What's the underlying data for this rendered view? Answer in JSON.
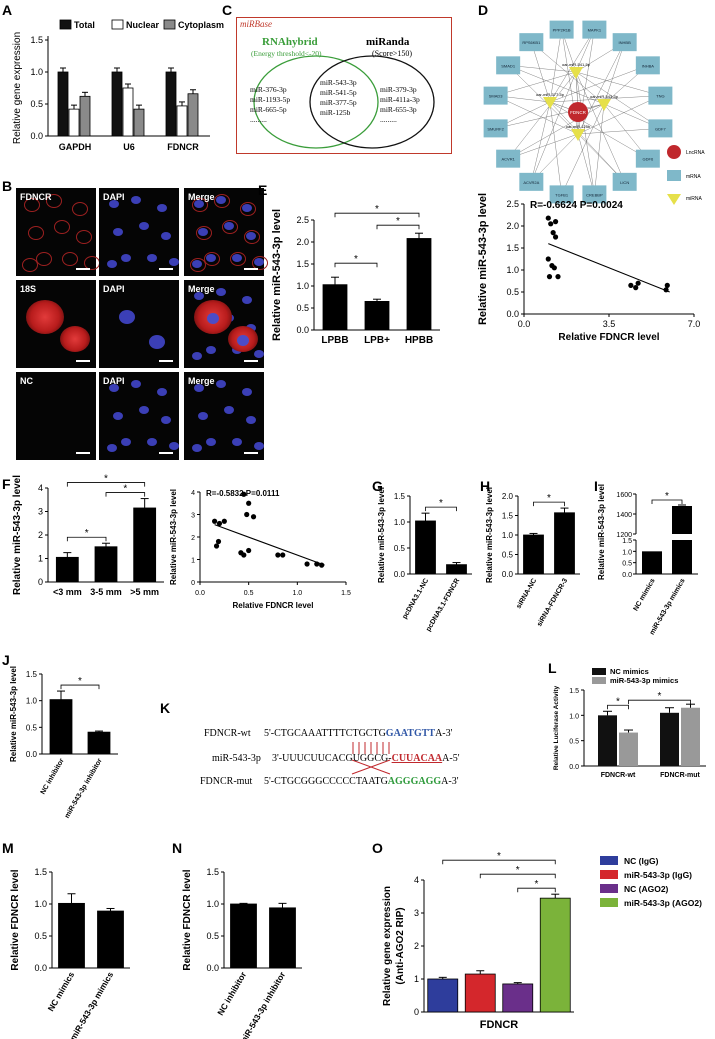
{
  "panels": {
    "A": {
      "letter": "A",
      "legend": [
        "Total",
        "Nuclear",
        "Cytoplasm"
      ],
      "colors": {
        "total": "#111111",
        "nuclear": "#ffffff",
        "cytoplasm": "#8a8a8a"
      },
      "ylabel": "Relative gene expression",
      "yticks": [
        "0.0",
        "0.5",
        "1.0",
        "1.5"
      ],
      "chart_data": {
        "type": "bar",
        "categories": [
          "GAPDH",
          "U6",
          "FDNCR"
        ],
        "series": [
          {
            "name": "Total",
            "values": [
              1.0,
              1.0,
              1.0
            ]
          },
          {
            "name": "Nuclear",
            "values": [
              0.42,
              0.75,
              0.47
            ]
          },
          {
            "name": "Cytoplasm",
            "values": [
              0.62,
              0.42,
              0.66
            ]
          }
        ],
        "ylim": [
          0,
          1.5
        ]
      }
    },
    "B": {
      "letter": "B",
      "rows": [
        {
          "labels": [
            "FDNCR",
            "DAPI",
            "Merge"
          ]
        },
        {
          "labels": [
            "18S",
            "DAPI",
            "Merge"
          ]
        },
        {
          "labels": [
            "NC",
            "DAPI",
            "Merge"
          ]
        }
      ]
    },
    "C": {
      "letter": "C",
      "box_title": "miRBase",
      "left_title": "RNAhybrid",
      "left_sub": "(Energy threshold<-20)",
      "right_title": "miRanda",
      "right_sub": "(Score>150)",
      "left_only": [
        "miR-376-3p",
        "miR-1193-5p",
        "miR-665-5p",
        "........."
      ],
      "shared": [
        "miR-543-3p",
        "miR-541-5p",
        "miR-377-5p",
        "miR-125b"
      ],
      "right_only": [
        "miR-379-3p",
        "miR-411a-3p",
        "miR-655-3p",
        "........."
      ]
    },
    "D": {
      "letter": "D",
      "center": "FDNCR",
      "mirnas": [
        "oar-miR-541-5p",
        "oar-miR-377-5p",
        "oar-miR-543-3p",
        "oar-miR-125b"
      ],
      "mrnas": [
        "MAPK1",
        "INHBB",
        "INHBA",
        "TNG",
        "GDF7",
        "GDF6",
        "LICN",
        "CREBBP",
        "TGFB1",
        "ACVR2A",
        "ACVR1",
        "SMURF2",
        "SMAD3",
        "SMAD1",
        "RPS6KB1",
        "PPP2R1B"
      ],
      "legend": [
        "LncRNA",
        "mRNA",
        "miRNA"
      ],
      "colors": {
        "lncrna": "#c0282d",
        "mrna": "#7fb8c9",
        "mirna": "#e6e04a"
      }
    },
    "E": {
      "letter": "E",
      "ylabel": "Relative miR-543-3p level",
      "bar_chart": {
        "type": "bar",
        "categories": [
          "LPBB",
          "LPB+",
          "HPBB"
        ],
        "values": [
          1.03,
          0.65,
          2.08
        ],
        "errors": [
          0.17,
          0.05,
          0.12
        ],
        "ylim": [
          0,
          2.5
        ],
        "yticks": [
          "0.0",
          "0.5",
          "1.0",
          "1.5",
          "2.0",
          "2.5"
        ],
        "sig": [
          "*",
          "*",
          "*"
        ]
      },
      "scatter": {
        "type": "scatter",
        "stat": "R=-0.6624    P=0.0024",
        "xlabel": "Relative FDNCR level",
        "xticks": [
          "0.0",
          "3.5",
          "7.0"
        ],
        "yticks": [
          "0.0",
          "0.5",
          "1.0",
          "1.5",
          "2.0",
          "2.5"
        ],
        "xlim": [
          0,
          7
        ],
        "ylim": [
          0,
          2.5
        ],
        "x": [
          1.0,
          1.1,
          1.2,
          1.3,
          1.0,
          1.15,
          1.4,
          1.05,
          1.25,
          1.3,
          4.4,
          4.7,
          4.6,
          5.9,
          5.85
        ],
        "y": [
          2.18,
          2.05,
          1.85,
          1.75,
          1.25,
          1.1,
          0.85,
          0.85,
          1.05,
          2.1,
          0.65,
          0.7,
          0.6,
          0.65,
          0.55
        ],
        "fit": {
          "x": [
            1.0,
            6.0
          ],
          "y": [
            1.6,
            0.5
          ]
        }
      }
    },
    "F": {
      "letter": "F",
      "ylabel": "Relative miR-543-3p level",
      "bar_chart": {
        "type": "bar",
        "categories": [
          "<3 mm",
          "3-5 mm",
          ">5 mm"
        ],
        "values": [
          1.05,
          1.5,
          3.15
        ],
        "errors": [
          0.2,
          0.15,
          0.4
        ],
        "ylim": [
          0,
          4
        ],
        "yticks": [
          "0",
          "1",
          "2",
          "3",
          "4"
        ],
        "sig": [
          "*",
          "*",
          "*"
        ]
      },
      "scatter": {
        "type": "scatter",
        "stat": "R=-0.5832    P=0.0111",
        "xlabel": "Relative FDNCR level",
        "ylabel": "Relative miR-543-3p level",
        "xticks": [
          "0.0",
          "0.5",
          "1.0",
          "1.5"
        ],
        "yticks": [
          "0",
          "1",
          "2",
          "3",
          "4"
        ],
        "xlim": [
          0,
          1.5
        ],
        "ylim": [
          0,
          4
        ],
        "x": [
          0.15,
          0.2,
          0.25,
          0.17,
          0.19,
          0.45,
          0.5,
          0.48,
          0.55,
          0.42,
          0.45,
          0.5,
          0.8,
          0.85,
          1.1,
          1.2,
          1.25
        ],
        "y": [
          2.7,
          2.6,
          2.7,
          1.6,
          1.8,
          3.9,
          3.5,
          3.0,
          2.9,
          1.3,
          1.2,
          1.4,
          1.2,
          1.2,
          0.8,
          0.8,
          0.75
        ],
        "fit": {
          "x": [
            0.15,
            1.28
          ],
          "y": [
            2.55,
            0.75
          ]
        }
      }
    },
    "G": {
      "letter": "G",
      "ylabel": "Relative miR-543-3p level",
      "chart_data": {
        "type": "bar",
        "categories": [
          "pcDNA3.1-NC",
          "pcDNA3.1-FDNCR"
        ],
        "values": [
          1.02,
          0.18
        ],
        "errors": [
          0.15,
          0.04
        ],
        "ylim": [
          0,
          1.5
        ]
      },
      "yticks": [
        "0.0",
        "0.5",
        "1.0",
        "1.5"
      ],
      "sig": "*"
    },
    "H": {
      "letter": "H",
      "ylabel": "Relative miR-543-3p level",
      "chart_data": {
        "type": "bar",
        "categories": [
          "siRNA-NC",
          "siRNA-FDNCR-3"
        ],
        "values": [
          1.0,
          1.57
        ],
        "errors": [
          0.04,
          0.12
        ],
        "ylim": [
          0,
          2.0
        ]
      },
      "yticks": [
        "0.0",
        "0.5",
        "1.0",
        "1.5",
        "2.0"
      ],
      "sig": "*"
    },
    "I": {
      "letter": "I",
      "ylabel": "Relative miR-543-3p level",
      "chart_data": {
        "type": "bar",
        "categories": [
          "NC mimics",
          "miR-543-3p mimics"
        ],
        "values": [
          1.0,
          1480
        ],
        "errors": [
          0.02,
          10
        ],
        "ylim": [
          0,
          1600
        ]
      },
      "yticks_low": [
        "0.0",
        "0.5",
        "1.0",
        "1.5"
      ],
      "yticks_high": [
        "1200",
        "1400",
        "1600"
      ],
      "sig": "*"
    },
    "J": {
      "letter": "J",
      "ylabel": "Relative miR-543-3p level",
      "chart_data": {
        "type": "bar",
        "categories": [
          "NC inhibitor",
          "miR-543-3p inhibitor"
        ],
        "values": [
          1.02,
          0.41
        ],
        "errors": [
          0.16,
          0.02
        ],
        "ylim": [
          0,
          1.5
        ]
      },
      "yticks": [
        "0.0",
        "0.5",
        "1.0",
        "1.5"
      ],
      "sig": "*"
    },
    "K": {
      "letter": "K",
      "wt_label": "FDNCR-wt",
      "wt_left": "5'-CTGCAAATTTTCTGCTG",
      "wt_site": "GAATGTT",
      "wt_right": "A-3'",
      "mir_label": "miR-543-3p",
      "mir_left": "3'-UUUCUUCACGUGGCG-",
      "mir_site": "CUUACAA",
      "mir_right": "A-5'",
      "mut_label": "FDNCR-mut",
      "mut_left": "5'-CTGCGGGCCCCCTAATG",
      "mut_site": "AGGGAGG",
      "mut_right": "A-3'",
      "colors": {
        "wt": "#2f56a6",
        "mir": "#c0282d",
        "mut": "#2e9a3b"
      }
    },
    "L": {
      "letter": "L",
      "ylabel": "Relative Luciferase Activity",
      "legend": [
        "NC mimics",
        "miR-543-3p mimics"
      ],
      "colors": {
        "nc": "#111111",
        "mimic": "#999999"
      },
      "chart_data": {
        "type": "bar",
        "categories": [
          "FDNCR-wt",
          "FDNCR-mut"
        ],
        "series": [
          {
            "name": "NC mimics",
            "values": [
              1.0,
              1.05
            ],
            "errors": [
              0.08,
              0.1
            ]
          },
          {
            "name": "miR-543-3p mimics",
            "values": [
              0.66,
              1.15
            ],
            "errors": [
              0.05,
              0.07
            ]
          }
        ],
        "ylim": [
          0,
          1.5
        ]
      },
      "yticks": [
        "0.0",
        "0.5",
        "1.0",
        "1.5"
      ],
      "sig": [
        "*",
        "*"
      ]
    },
    "M": {
      "letter": "M",
      "ylabel": "Relative FDNCR level",
      "chart_data": {
        "type": "bar",
        "categories": [
          "NC mimics",
          "miR-543-3p mimics"
        ],
        "values": [
          1.01,
          0.89
        ],
        "errors": [
          0.15,
          0.04
        ],
        "ylim": [
          0,
          1.5
        ]
      },
      "yticks": [
        "0.0",
        "0.5",
        "1.0",
        "1.5"
      ]
    },
    "N": {
      "letter": "N",
      "ylabel": "Relative FDNCR level",
      "chart_data": {
        "type": "bar",
        "categories": [
          "NC inhibitor",
          "miR-543-3p inhibitor"
        ],
        "values": [
          1.0,
          0.94
        ],
        "errors": [
          0.01,
          0.07
        ],
        "ylim": [
          0,
          1.5
        ]
      },
      "yticks": [
        "0.0",
        "0.5",
        "1.0",
        "1.5"
      ]
    },
    "O": {
      "letter": "O",
      "ylabel": "Relative gene expression",
      "ylabel2": "(Anti-AGO2 RIP)",
      "xlabel": "FDNCR",
      "legend": [
        "NC (IgG)",
        "miR-543-3p (IgG)",
        "NC (AGO2)",
        "miR-543-3p (AGO2)"
      ],
      "colors": [
        "#2e3d9c",
        "#d4272c",
        "#6a2f8a",
        "#7bb33a"
      ],
      "chart_data": {
        "type": "bar",
        "categories": [
          "NC (IgG)",
          "miR-543-3p (IgG)",
          "NC (AGO2)",
          "miR-543-3p (AGO2)"
        ],
        "values": [
          1.0,
          1.15,
          0.85,
          3.45
        ],
        "errors": [
          0.05,
          0.1,
          0.04,
          0.12
        ],
        "ylim": [
          0,
          4
        ]
      },
      "yticks": [
        "0",
        "1",
        "2",
        "3",
        "4"
      ],
      "sig": [
        "*",
        "*",
        "*"
      ]
    }
  }
}
